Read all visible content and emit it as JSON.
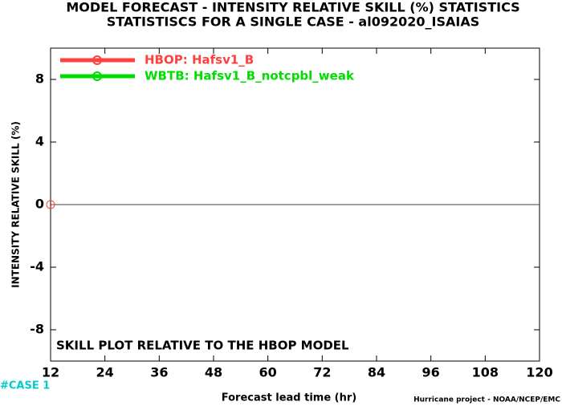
{
  "chart_data": {
    "type": "line",
    "title": "MODEL FORECAST - INTENSITY RELATIVE SKILL (%) STATISTICS",
    "subtitle": "STATISTISCS FOR A SINGLE CASE - al092020_ISAIAS",
    "y_label": "INTENSITY RELATIVE SKILL (%)",
    "x_label": "Forecast lead time (hr)",
    "annotation": "SKILL PLOT RELATIVE TO THE HBOP MODEL",
    "case_label": "#CASE  1",
    "credit": "Hurricane project - NOAA/NCEP/EMC",
    "x": [
      12
    ],
    "series": [
      {
        "name": "HBOP: Hafsv1_B",
        "color": "#ff4040",
        "values": [
          0
        ]
      },
      {
        "name": "WBTB: Hafsv1_B_notcpbl_weak",
        "color": "#00dd00",
        "values": [
          null
        ]
      }
    ],
    "xlim": [
      12,
      120
    ],
    "xticks": [
      12,
      24,
      36,
      48,
      60,
      72,
      84,
      96,
      108,
      120
    ],
    "ylim": [
      -10,
      10
    ],
    "yticks": [
      8,
      4,
      0,
      -4,
      -8
    ],
    "zero_line": true,
    "legend": "upper left"
  }
}
